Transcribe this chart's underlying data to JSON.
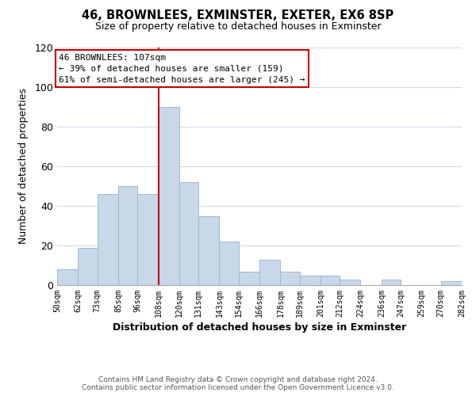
{
  "title": "46, BROWNLEES, EXMINSTER, EXETER, EX6 8SP",
  "subtitle": "Size of property relative to detached houses in Exminster",
  "xlabel": "Distribution of detached houses by size in Exminster",
  "ylabel": "Number of detached properties",
  "footer_line1": "Contains HM Land Registry data © Crown copyright and database right 2024.",
  "footer_line2": "Contains public sector information licensed under the Open Government Licence v3.0.",
  "bar_edges": [
    50,
    62,
    73,
    85,
    96,
    108,
    120,
    131,
    143,
    154,
    166,
    178,
    189,
    201,
    212,
    224,
    236,
    247,
    259,
    270,
    282
  ],
  "bar_heights": [
    8,
    19,
    46,
    50,
    46,
    90,
    52,
    35,
    22,
    7,
    13,
    7,
    5,
    5,
    3,
    0,
    3,
    0,
    0,
    2
  ],
  "bar_color": "#c8d8e8",
  "bar_edgecolor": "#a0b8d0",
  "vline_x": 108,
  "vline_color": "#cc0000",
  "annotation_title": "46 BROWNLEES: 107sqm",
  "annotation_line1": "← 39% of detached houses are smaller (159)",
  "annotation_line2": "61% of semi-detached houses are larger (245) →",
  "annotation_box_color": "#ffffff",
  "annotation_box_edgecolor": "#cc0000",
  "tick_labels": [
    "50sqm",
    "62sqm",
    "73sqm",
    "85sqm",
    "96sqm",
    "108sqm",
    "120sqm",
    "131sqm",
    "143sqm",
    "154sqm",
    "166sqm",
    "178sqm",
    "189sqm",
    "201sqm",
    "212sqm",
    "224sqm",
    "236sqm",
    "247sqm",
    "259sqm",
    "270sqm",
    "282sqm"
  ],
  "ylim": [
    0,
    120
  ],
  "yticks": [
    0,
    20,
    40,
    60,
    80,
    100,
    120
  ],
  "background_color": "#ffffff",
  "grid_color": "#d0dce8"
}
